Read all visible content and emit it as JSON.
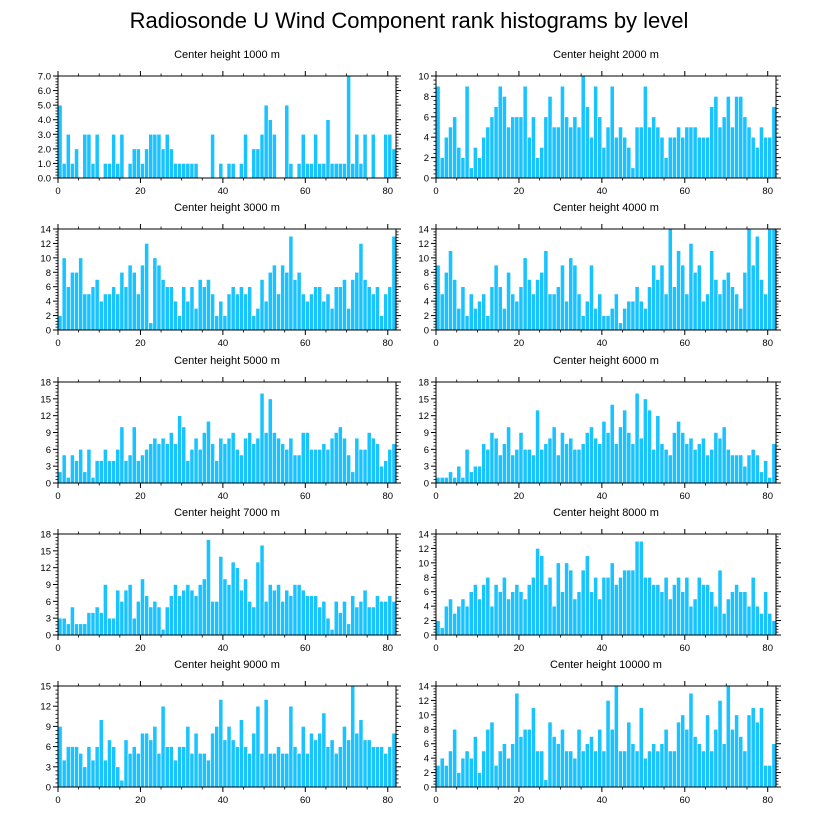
{
  "title": "Radiosonde U Wind Component rank histograms by level",
  "colors": {
    "bar": "#19c3ff",
    "bar_edge": "#ffffff",
    "axis": "#000000"
  },
  "chart_data": [
    {
      "type": "bar",
      "title": "Center height 1000 m",
      "xlim": [
        0,
        82
      ],
      "ylim": [
        0,
        7
      ],
      "yticks": [
        0,
        1,
        2,
        3,
        4,
        5,
        6,
        7
      ],
      "ytick_labels": [
        "0.0",
        "1.0",
        "2.0",
        "3.0",
        "4.0",
        "5.0",
        "6.0",
        "7.0"
      ],
      "xticks": [
        0,
        20,
        40,
        60,
        80
      ],
      "values": [
        5,
        1,
        3,
        1,
        2,
        0,
        3,
        3,
        1,
        3,
        0,
        1,
        1,
        3,
        1,
        3,
        0,
        1,
        2,
        2,
        1,
        2,
        3,
        3,
        3,
        2,
        3,
        2,
        1,
        1,
        1,
        1,
        1,
        1,
        0,
        0,
        0,
        3,
        0,
        1,
        0,
        1,
        1,
        0,
        1,
        3,
        0,
        2,
        2,
        3,
        5,
        4,
        3,
        0,
        0,
        5,
        1,
        0,
        1,
        3,
        1,
        1,
        3,
        1,
        1,
        4,
        1,
        1,
        1,
        1,
        7,
        1,
        3,
        1,
        3,
        0,
        3,
        0,
        0,
        3,
        3,
        2
      ]
    },
    {
      "type": "bar",
      "title": "Center height 2000 m",
      "xlim": [
        0,
        82
      ],
      "ylim": [
        0,
        10
      ],
      "yticks": [
        0,
        2,
        4,
        6,
        8,
        10
      ],
      "ytick_labels": [
        "0",
        "2",
        "4",
        "6",
        "8",
        "10"
      ],
      "xticks": [
        0,
        20,
        40,
        60,
        80
      ],
      "values": [
        9,
        2,
        4,
        5,
        6,
        3,
        2,
        9,
        1,
        3,
        2,
        4,
        5,
        6,
        7,
        9,
        8,
        5,
        6,
        6,
        6,
        9,
        4,
        6,
        2,
        3,
        6,
        8,
        5,
        5,
        9,
        6,
        5,
        6,
        5,
        10,
        7,
        4,
        9,
        6,
        3,
        5,
        9,
        4,
        5,
        4,
        3,
        1,
        5,
        5,
        9,
        5,
        6,
        5,
        4,
        2,
        4,
        4,
        5,
        4,
        5,
        5,
        5,
        4,
        4,
        4,
        7,
        8,
        5,
        6,
        8,
        5,
        8,
        8,
        6,
        5,
        4,
        3,
        5,
        4,
        4,
        7
      ]
    },
    {
      "type": "bar",
      "title": "Center height 3000 m",
      "xlim": [
        0,
        82
      ],
      "ylim": [
        0,
        14
      ],
      "yticks": [
        0,
        2,
        4,
        6,
        8,
        10,
        12,
        14
      ],
      "ytick_labels": [
        "0",
        "2",
        "4",
        "6",
        "8",
        "10",
        "12",
        "14"
      ],
      "xticks": [
        0,
        20,
        40,
        60,
        80
      ],
      "values": [
        2,
        10,
        6,
        8,
        8,
        10,
        5,
        5,
        6,
        7,
        4,
        5,
        5,
        6,
        5,
        8,
        6,
        9,
        8,
        5,
        9,
        12,
        1,
        10,
        9,
        7,
        6,
        6,
        4,
        2,
        6,
        4,
        6,
        3,
        7,
        6,
        7,
        5,
        2,
        4,
        2,
        5,
        6,
        5,
        6,
        5,
        6,
        2,
        3,
        7,
        4,
        8,
        9,
        5,
        9,
        8,
        13,
        7,
        8,
        5,
        4,
        5,
        6,
        6,
        4,
        5,
        3,
        6,
        6,
        7,
        3,
        7,
        8,
        12,
        7,
        6,
        5,
        6,
        2,
        5,
        6,
        13
      ]
    },
    {
      "type": "bar",
      "title": "Center height 4000 m",
      "xlim": [
        0,
        82
      ],
      "ylim": [
        0,
        14
      ],
      "yticks": [
        0,
        2,
        4,
        6,
        8,
        10,
        12,
        14
      ],
      "ytick_labels": [
        "0",
        "2",
        "4",
        "6",
        "8",
        "10",
        "12",
        "14"
      ],
      "xticks": [
        0,
        20,
        40,
        60,
        80
      ],
      "values": [
        9,
        5,
        8,
        11,
        7,
        3,
        6,
        2,
        5,
        3,
        4,
        5,
        2,
        6,
        9,
        6,
        3,
        8,
        5,
        4,
        6,
        10,
        7,
        5,
        7,
        8,
        11,
        5,
        5,
        6,
        9,
        4,
        10,
        9,
        5,
        2,
        4,
        9,
        3,
        5,
        2,
        2,
        3,
        5,
        1,
        3,
        4,
        4,
        6,
        4,
        3,
        6,
        9,
        7,
        9,
        5,
        14,
        6,
        11,
        9,
        5,
        12,
        8,
        9,
        4,
        5,
        11,
        7,
        5,
        7,
        8,
        6,
        5,
        3,
        8,
        14,
        9,
        13,
        7,
        5,
        14,
        14
      ]
    },
    {
      "type": "bar",
      "title": "Center height 5000 m",
      "xlim": [
        0,
        82
      ],
      "ylim": [
        0,
        18
      ],
      "yticks": [
        0,
        3,
        6,
        9,
        12,
        15,
        18
      ],
      "ytick_labels": [
        "0",
        "3",
        "6",
        "9",
        "12",
        "15",
        "18"
      ],
      "xticks": [
        0,
        20,
        40,
        60,
        80
      ],
      "values": [
        2,
        5,
        1,
        5,
        4,
        6,
        2,
        6,
        1,
        4,
        4,
        6,
        4,
        4,
        6,
        10,
        4,
        5,
        10,
        4,
        5,
        6,
        7,
        8,
        7,
        8,
        7,
        9,
        7,
        12,
        10,
        4,
        6,
        8,
        6,
        9,
        11,
        7,
        4,
        8,
        7,
        8,
        9,
        6,
        5,
        8,
        9,
        7,
        8,
        16,
        9,
        15,
        9,
        8,
        7,
        6,
        8,
        5,
        5,
        9,
        9,
        6,
        6,
        6,
        7,
        6,
        8,
        9,
        10,
        8,
        5,
        2,
        8,
        6,
        6,
        9,
        8,
        7,
        3,
        4,
        6,
        7
      ]
    },
    {
      "type": "bar",
      "title": "Center height 6000 m",
      "xlim": [
        0,
        82
      ],
      "ylim": [
        0,
        18
      ],
      "yticks": [
        0,
        3,
        6,
        9,
        12,
        15,
        18
      ],
      "ytick_labels": [
        "0",
        "3",
        "6",
        "9",
        "12",
        "15",
        "18"
      ],
      "xticks": [
        0,
        20,
        40,
        60,
        80
      ],
      "values": [
        1,
        1,
        1,
        2,
        1,
        3,
        1,
        6,
        2,
        3,
        3,
        7,
        6,
        9,
        8,
        5,
        7,
        10,
        5,
        6,
        9,
        6,
        6,
        5,
        13,
        6,
        7,
        8,
        10,
        5,
        9,
        7,
        8,
        6,
        6,
        7,
        9,
        10,
        8,
        7,
        11,
        9,
        14,
        7,
        10,
        13,
        9,
        7,
        16,
        8,
        15,
        13,
        6,
        12,
        7,
        6,
        5,
        9,
        11,
        9,
        7,
        8,
        6,
        7,
        8,
        5,
        6,
        9,
        8,
        10,
        6,
        5,
        5,
        5,
        3,
        5,
        6,
        5,
        2,
        4,
        1,
        7
      ]
    },
    {
      "type": "bar",
      "title": "Center height 7000 m",
      "xlim": [
        0,
        82
      ],
      "ylim": [
        0,
        18
      ],
      "yticks": [
        0,
        3,
        6,
        9,
        12,
        15,
        18
      ],
      "ytick_labels": [
        "0",
        "3",
        "6",
        "9",
        "12",
        "15",
        "18"
      ],
      "xticks": [
        0,
        20,
        40,
        60,
        80
      ],
      "values": [
        3,
        3,
        2,
        5,
        2,
        2,
        2,
        4,
        4,
        5,
        4,
        9,
        3,
        3,
        8,
        6,
        8,
        9,
        3,
        6,
        10,
        7,
        5,
        6,
        5,
        1,
        5,
        7,
        9,
        7,
        8,
        9,
        8,
        7,
        9,
        10,
        17,
        6,
        6,
        14,
        10,
        9,
        13,
        12,
        8,
        10,
        6,
        5,
        13,
        16,
        6,
        9,
        8,
        9,
        6,
        8,
        7,
        9,
        9,
        8,
        7,
        7,
        7,
        5,
        6,
        3,
        1,
        6,
        4,
        6,
        2,
        7,
        5,
        6,
        8,
        5,
        5,
        7,
        6,
        6,
        7,
        6
      ]
    },
    {
      "type": "bar",
      "title": "Center height 8000 m",
      "xlim": [
        0,
        82
      ],
      "ylim": [
        0,
        14
      ],
      "yticks": [
        0,
        2,
        4,
        6,
        8,
        10,
        12,
        14
      ],
      "ytick_labels": [
        "0",
        "2",
        "4",
        "6",
        "8",
        "10",
        "12",
        "14"
      ],
      "xticks": [
        0,
        20,
        40,
        60,
        80
      ],
      "values": [
        2,
        1,
        4,
        5,
        3,
        4,
        5,
        4,
        6,
        7,
        5,
        7,
        8,
        4,
        7,
        6,
        8,
        5,
        6,
        7,
        6,
        5,
        7,
        8,
        12,
        11,
        7,
        8,
        4,
        10,
        6,
        10,
        9,
        5,
        6,
        9,
        11,
        6,
        8,
        5,
        8,
        8,
        10,
        7,
        8,
        9,
        9,
        9,
        13,
        13,
        8,
        8,
        7,
        7,
        6,
        8,
        5,
        7,
        8,
        6,
        8,
        4,
        5,
        8,
        7,
        7,
        6,
        4,
        9,
        3,
        5,
        6,
        7,
        6,
        6,
        4,
        8,
        4,
        3,
        6,
        3,
        2
      ]
    },
    {
      "type": "bar",
      "title": "Center height 9000 m",
      "xlim": [
        0,
        82
      ],
      "ylim": [
        0,
        15
      ],
      "yticks": [
        0,
        3,
        6,
        9,
        12,
        15
      ],
      "ytick_labels": [
        "0",
        "3",
        "6",
        "9",
        "12",
        "15"
      ],
      "xticks": [
        0,
        20,
        40,
        60,
        80
      ],
      "values": [
        9,
        4,
        6,
        6,
        6,
        5,
        3,
        6,
        4,
        6,
        10,
        4,
        7,
        6,
        3,
        1,
        7,
        5,
        6,
        5,
        8,
        8,
        7,
        9,
        5,
        12,
        6,
        6,
        4,
        6,
        6,
        9,
        5,
        8,
        5,
        5,
        4,
        8,
        9,
        13,
        7,
        9,
        7,
        6,
        10,
        6,
        5,
        8,
        12,
        5,
        13,
        5,
        5,
        6,
        5,
        5,
        12,
        6,
        5,
        9,
        5,
        8,
        7,
        8,
        11,
        6,
        7,
        5,
        6,
        9,
        7,
        15,
        8,
        10,
        7,
        7,
        6,
        6,
        6,
        5,
        6,
        8
      ]
    },
    {
      "type": "bar",
      "title": "Center height 10000 m",
      "xlim": [
        0,
        82
      ],
      "ylim": [
        0,
        14
      ],
      "yticks": [
        0,
        2,
        4,
        6,
        8,
        10,
        12,
        14
      ],
      "ytick_labels": [
        "0",
        "2",
        "4",
        "6",
        "8",
        "10",
        "12",
        "14"
      ],
      "xticks": [
        0,
        20,
        40,
        60,
        80
      ],
      "values": [
        3,
        4,
        3,
        5,
        8,
        2,
        4,
        5,
        4,
        7,
        2,
        5,
        8,
        9,
        3,
        5,
        6,
        4,
        6,
        13,
        7,
        8,
        8,
        11,
        5,
        5,
        1,
        9,
        7,
        6,
        8,
        5,
        5,
        4,
        8,
        5,
        6,
        7,
        5,
        8,
        5,
        12,
        8,
        14,
        5,
        5,
        9,
        6,
        5,
        11,
        4,
        5,
        6,
        5,
        6,
        8,
        5,
        5,
        9,
        10,
        8,
        13,
        7,
        6,
        5,
        10,
        5,
        8,
        12,
        6,
        14,
        8,
        10,
        7,
        5,
        10,
        11,
        9,
        11,
        3,
        3,
        6
      ]
    }
  ]
}
